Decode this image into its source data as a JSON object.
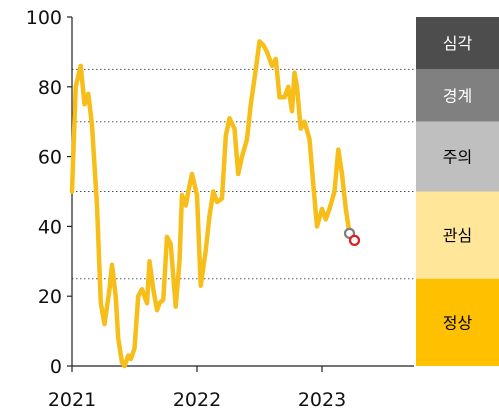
{
  "chart_data": {
    "type": "line",
    "title": "",
    "xlabel": "",
    "ylabel": "",
    "ylim": [
      0,
      100
    ],
    "xlim": [
      2021.0,
      2024.0
    ],
    "y_ticks": [
      "0",
      "20",
      "40",
      "60",
      "80",
      "100"
    ],
    "x_ticks": [
      "2021",
      "2022",
      "2023"
    ],
    "grid": "dotted horizontal lines at zone thresholds",
    "legend": "none",
    "series": [
      {
        "color": "#F7BE1A",
        "points": [
          [
            2021.0,
            50
          ],
          [
            2021.03,
            80
          ],
          [
            2021.07,
            86
          ],
          [
            2021.1,
            75
          ],
          [
            2021.13,
            78
          ],
          [
            2021.16,
            69
          ],
          [
            2021.2,
            46
          ],
          [
            2021.23,
            18
          ],
          [
            2021.26,
            12
          ],
          [
            2021.3,
            22
          ],
          [
            2021.32,
            29
          ],
          [
            2021.35,
            20
          ],
          [
            2021.37,
            8
          ],
          [
            2021.4,
            1
          ],
          [
            2021.42,
            0
          ],
          [
            2021.45,
            3
          ],
          [
            2021.47,
            2
          ],
          [
            2021.5,
            5
          ],
          [
            2021.53,
            20
          ],
          [
            2021.56,
            22
          ],
          [
            2021.6,
            18
          ],
          [
            2021.62,
            30
          ],
          [
            2021.65,
            22
          ],
          [
            2021.68,
            16
          ],
          [
            2021.7,
            18
          ],
          [
            2021.73,
            19
          ],
          [
            2021.76,
            37
          ],
          [
            2021.79,
            35
          ],
          [
            2021.83,
            17
          ],
          [
            2021.86,
            30
          ],
          [
            2021.88,
            49
          ],
          [
            2021.91,
            46
          ],
          [
            2021.93,
            50
          ],
          [
            2021.96,
            55
          ],
          [
            2022.0,
            49
          ],
          [
            2022.03,
            23
          ],
          [
            2022.07,
            33
          ],
          [
            2022.1,
            43
          ],
          [
            2022.13,
            50
          ],
          [
            2022.16,
            47
          ],
          [
            2022.2,
            48
          ],
          [
            2022.23,
            66
          ],
          [
            2022.26,
            71
          ],
          [
            2022.3,
            68
          ],
          [
            2022.33,
            55
          ],
          [
            2022.36,
            60
          ],
          [
            2022.4,
            65
          ],
          [
            2022.43,
            75
          ],
          [
            2022.47,
            85
          ],
          [
            2022.5,
            93
          ],
          [
            2022.53,
            92
          ],
          [
            2022.56,
            90
          ],
          [
            2022.6,
            86
          ],
          [
            2022.63,
            88
          ],
          [
            2022.66,
            77
          ],
          [
            2022.7,
            77
          ],
          [
            2022.73,
            80
          ],
          [
            2022.76,
            73
          ],
          [
            2022.78,
            84
          ],
          [
            2022.8,
            80
          ],
          [
            2022.83,
            68
          ],
          [
            2022.86,
            70
          ],
          [
            2022.9,
            65
          ],
          [
            2022.93,
            52
          ],
          [
            2022.96,
            40
          ],
          [
            2023.0,
            45
          ],
          [
            2023.03,
            42
          ],
          [
            2023.06,
            45
          ],
          [
            2023.1,
            50
          ],
          [
            2023.13,
            62
          ],
          [
            2023.16,
            55
          ],
          [
            2023.19,
            45
          ],
          [
            2023.22,
            38
          ],
          [
            2023.25,
            36
          ]
        ],
        "markers": [
          {
            "x": 2023.22,
            "y": 38,
            "style": "gray ring"
          },
          {
            "x": 2023.26,
            "y": 36,
            "style": "red ring"
          }
        ]
      }
    ],
    "zones": [
      {
        "label": "심각",
        "from": 85,
        "to": 100,
        "color": "#4D4D4D",
        "text_color": "#FFFFFF"
      },
      {
        "label": "경계",
        "from": 70,
        "to": 85,
        "color": "#808080",
        "text_color": "#FFFFFF"
      },
      {
        "label": "주의",
        "from": 50,
        "to": 70,
        "color": "#BFBFBF",
        "text_color": "#000000"
      },
      {
        "label": "관심",
        "from": 25,
        "to": 50,
        "color": "#FFE699",
        "text_color": "#000000"
      },
      {
        "label": "정상",
        "from": 0,
        "to": 25,
        "color": "#FFC000",
        "text_color": "#000000"
      }
    ],
    "thresholds": [
      25,
      50,
      70,
      85
    ]
  }
}
